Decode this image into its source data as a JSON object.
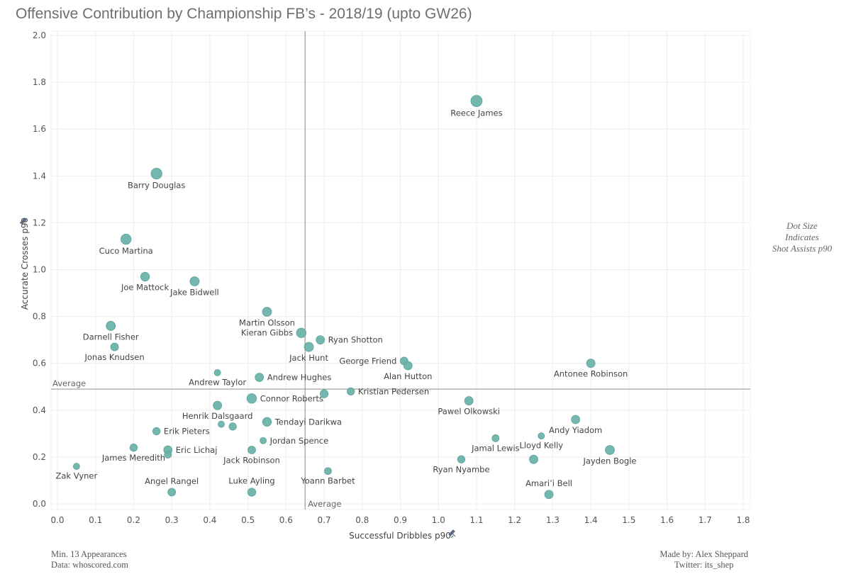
{
  "header": {
    "title": "Offensive Contribution by Championship FB’s - 2018/19 (upto GW26)"
  },
  "side_note": {
    "line1": "Dot Size",
    "line2": "Indicates",
    "line3": "Shot Assists p90"
  },
  "footer": {
    "left_line1": "Min. 13 Appearances",
    "left_line2": "Data: whoscored.com",
    "right_line1": "Made by: Alex Sheppard",
    "right_line2": "Twitter: its_shep"
  },
  "colors": {
    "dot": "#6cb3ab",
    "dot_stroke": "#5ea39b",
    "grid": "#eeeeee",
    "ref_line": "#9a9a9a",
    "label": "#444444"
  },
  "chart_data": {
    "type": "scatter",
    "title": "Offensive Contribution by Championship FB’s - 2018/19 (upto GW26)",
    "xlabel": "Successful Dribbles p90",
    "ylabel": "Accurate Crosses p90",
    "size_label": "Shot Assists p90",
    "xlim": [
      0,
      1.8
    ],
    "ylim": [
      0,
      2.0
    ],
    "xticks": [
      "0.0",
      "0.1",
      "0.2",
      "0.3",
      "0.4",
      "0.5",
      "0.6",
      "0.7",
      "0.8",
      "0.9",
      "1.0",
      "1.1",
      "1.2",
      "1.3",
      "1.4",
      "1.5",
      "1.6",
      "1.7",
      "1.8"
    ],
    "yticks": [
      "0.0",
      "0.2",
      "0.4",
      "0.6",
      "0.8",
      "1.0",
      "1.2",
      "1.4",
      "1.6",
      "1.8",
      "2.0"
    ],
    "grid": true,
    "reference_lines": {
      "x": {
        "value": 0.65,
        "label": "Average"
      },
      "y": {
        "value": 0.49,
        "label": "Average"
      }
    },
    "points": [
      {
        "name": "Reece James",
        "x": 1.1,
        "y": 1.72,
        "size": 1.0,
        "label_pos": "below"
      },
      {
        "name": "Barry Douglas",
        "x": 0.26,
        "y": 1.41,
        "size": 0.95,
        "label_pos": "below"
      },
      {
        "name": "Cuco Martina",
        "x": 0.18,
        "y": 1.13,
        "size": 0.85,
        "label_pos": "below"
      },
      {
        "name": "Joe Mattock",
        "x": 0.23,
        "y": 0.97,
        "size": 0.65,
        "label_pos": "below"
      },
      {
        "name": "Jake Bidwell",
        "x": 0.36,
        "y": 0.95,
        "size": 0.7,
        "label_pos": "below"
      },
      {
        "name": "Martin Olsson",
        "x": 0.55,
        "y": 0.82,
        "size": 0.7,
        "label_pos": "below"
      },
      {
        "name": "Darnell Fisher",
        "x": 0.14,
        "y": 0.76,
        "size": 0.7,
        "label_pos": "below"
      },
      {
        "name": "Kieran Gibbs",
        "x": 0.64,
        "y": 0.73,
        "size": 0.75,
        "label_pos": "left"
      },
      {
        "name": "Ryan Shotton",
        "x": 0.69,
        "y": 0.7,
        "size": 0.6,
        "label_pos": "right"
      },
      {
        "name": "Jack Hunt",
        "x": 0.66,
        "y": 0.67,
        "size": 0.7,
        "label_pos": "below"
      },
      {
        "name": "Jonas Knudsen",
        "x": 0.15,
        "y": 0.67,
        "size": 0.5,
        "label_pos": "below"
      },
      {
        "name": "George Friend",
        "x": 0.91,
        "y": 0.61,
        "size": 0.5,
        "label_pos": "left"
      },
      {
        "name": "Alan Hutton",
        "x": 0.92,
        "y": 0.59,
        "size": 0.6,
        "label_pos": "below"
      },
      {
        "name": "Antonee Robinson",
        "x": 1.4,
        "y": 0.6,
        "size": 0.6,
        "label_pos": "below"
      },
      {
        "name": "Andrew Taylor",
        "x": 0.42,
        "y": 0.56,
        "size": 0.3,
        "label_pos": "below"
      },
      {
        "name": "Andrew Hughes",
        "x": 0.53,
        "y": 0.54,
        "size": 0.6,
        "label_pos": "right"
      },
      {
        "name": "Kristian Pedersen",
        "x": 0.77,
        "y": 0.48,
        "size": 0.45,
        "label_pos": "right"
      },
      {
        "name": "Connor Roberts",
        "x": 0.51,
        "y": 0.45,
        "size": 0.75,
        "label_pos": "right"
      },
      {
        "name": "",
        "x": 0.7,
        "y": 0.47,
        "size": 0.55,
        "label_pos": "none"
      },
      {
        "name": "Pawel Olkowski",
        "x": 1.08,
        "y": 0.44,
        "size": 0.6,
        "label_pos": "below"
      },
      {
        "name": "Henrik Dalsgaard",
        "x": 0.42,
        "y": 0.42,
        "size": 0.6,
        "label_pos": "below"
      },
      {
        "name": "Andy Yiadom",
        "x": 1.36,
        "y": 0.36,
        "size": 0.6,
        "label_pos": "below"
      },
      {
        "name": "Tendayi Darikwa",
        "x": 0.55,
        "y": 0.35,
        "size": 0.65,
        "label_pos": "right"
      },
      {
        "name": "",
        "x": 0.43,
        "y": 0.34,
        "size": 0.3,
        "label_pos": "none"
      },
      {
        "name": "",
        "x": 0.46,
        "y": 0.33,
        "size": 0.45,
        "label_pos": "none"
      },
      {
        "name": "Erik Pieters",
        "x": 0.26,
        "y": 0.31,
        "size": 0.45,
        "label_pos": "right"
      },
      {
        "name": "Lloyd Kelly",
        "x": 1.27,
        "y": 0.29,
        "size": 0.3,
        "label_pos": "below"
      },
      {
        "name": "Jamal Lewis",
        "x": 1.15,
        "y": 0.28,
        "size": 0.4,
        "label_pos": "below"
      },
      {
        "name": "Jordan Spence",
        "x": 0.54,
        "y": 0.27,
        "size": 0.3,
        "label_pos": "right"
      },
      {
        "name": "James Meredith",
        "x": 0.2,
        "y": 0.24,
        "size": 0.45,
        "label_pos": "below"
      },
      {
        "name": "Eric Lichaj",
        "x": 0.29,
        "y": 0.23,
        "size": 0.6,
        "label_pos": "right"
      },
      {
        "name": "",
        "x": 0.29,
        "y": 0.21,
        "size": 0.4,
        "label_pos": "none"
      },
      {
        "name": "Jack Robinson",
        "x": 0.51,
        "y": 0.23,
        "size": 0.5,
        "label_pos": "below"
      },
      {
        "name": "Jayden Bogle",
        "x": 1.45,
        "y": 0.23,
        "size": 0.7,
        "label_pos": "below"
      },
      {
        "name": "Ryan Nyambe",
        "x": 1.06,
        "y": 0.19,
        "size": 0.45,
        "label_pos": "below"
      },
      {
        "name": "",
        "x": 1.25,
        "y": 0.19,
        "size": 0.6,
        "label_pos": "none"
      },
      {
        "name": "Zak Vyner",
        "x": 0.05,
        "y": 0.16,
        "size": 0.3,
        "label_pos": "below"
      },
      {
        "name": "Yoann Barbet",
        "x": 0.71,
        "y": 0.14,
        "size": 0.4,
        "label_pos": "below"
      },
      {
        "name": "Angel Rangel",
        "x": 0.3,
        "y": 0.05,
        "size": 0.5,
        "label_pos": "above"
      },
      {
        "name": "Luke Ayling",
        "x": 0.51,
        "y": 0.05,
        "size": 0.55,
        "label_pos": "above"
      },
      {
        "name": "Amari’i Bell",
        "x": 1.29,
        "y": 0.04,
        "size": 0.6,
        "label_pos": "above"
      }
    ]
  }
}
